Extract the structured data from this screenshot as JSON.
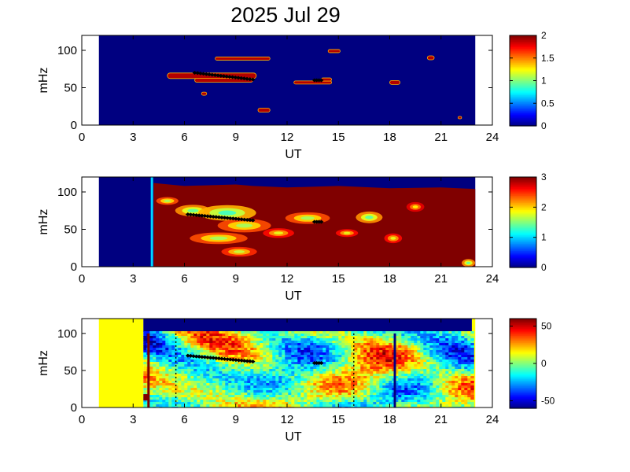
{
  "figure": {
    "title": "2025 Jul 29"
  },
  "chart_data": [
    {
      "type": "heatmap",
      "title": "",
      "xlabel": "UT",
      "ylabel": "mHz",
      "xlim": [
        0,
        24
      ],
      "ylim": [
        0,
        120
      ],
      "xticks": [
        0,
        3,
        6,
        9,
        12,
        15,
        18,
        21,
        24
      ],
      "yticks": [
        0,
        50,
        100
      ],
      "data_extent_ut": [
        1,
        23
      ],
      "colorbar": {
        "min": 0,
        "max": 2,
        "ticks": [
          0,
          0.5,
          1,
          1.5,
          2
        ],
        "tick_labels": [
          "0",
          "0.5",
          "1",
          "1.5",
          "2"
        ],
        "colormap": "jet"
      },
      "background_color": "#0a14a0",
      "features": [
        {
          "ut_start": 7.8,
          "ut_end": 11.0,
          "mhz": 89,
          "thickness": 4,
          "level": 1.9
        },
        {
          "ut_start": 5.0,
          "ut_end": 10.2,
          "mhz": 66,
          "thickness": 7,
          "level": 1.9
        },
        {
          "ut_start": 6.6,
          "ut_end": 10.0,
          "mhz": 60,
          "thickness": 5,
          "level": 1.9
        },
        {
          "ut_start": 12.4,
          "ut_end": 14.6,
          "mhz": 57,
          "thickness": 4,
          "level": 1.9
        },
        {
          "ut_start": 14.0,
          "ut_end": 14.6,
          "mhz": 61,
          "thickness": 4,
          "level": 1.9
        },
        {
          "ut_start": 7.0,
          "ut_end": 7.3,
          "mhz": 42,
          "thickness": 4,
          "level": 1.9
        },
        {
          "ut_start": 10.3,
          "ut_end": 11.0,
          "mhz": 20,
          "thickness": 5,
          "level": 1.9
        },
        {
          "ut_start": 14.4,
          "ut_end": 15.1,
          "mhz": 99,
          "thickness": 4,
          "level": 1.9
        },
        {
          "ut_start": 18.0,
          "ut_end": 18.6,
          "mhz": 57,
          "thickness": 5,
          "level": 1.9
        },
        {
          "ut_start": 20.2,
          "ut_end": 20.6,
          "mhz": 90,
          "thickness": 5,
          "level": 1.9
        },
        {
          "ut_start": 22.0,
          "ut_end": 22.2,
          "mhz": 10,
          "thickness": 3,
          "level": 1.9
        }
      ],
      "markers": [
        {
          "ut_start": 6.6,
          "ut_end": 10.0,
          "mhz_start": 70,
          "mhz_end": 61
        },
        {
          "ut_start": 13.6,
          "ut_end": 14.0,
          "mhz_start": 60,
          "mhz_end": 60
        }
      ]
    },
    {
      "type": "heatmap",
      "title": "",
      "xlabel": "UT",
      "ylabel": "mHz",
      "xlim": [
        0,
        24
      ],
      "ylim": [
        0,
        120
      ],
      "xticks": [
        0,
        3,
        6,
        9,
        12,
        15,
        18,
        21,
        24
      ],
      "yticks": [
        0,
        50,
        100
      ],
      "data_extent_ut": [
        1,
        23
      ],
      "colorbar": {
        "min": 0,
        "max": 3,
        "ticks": [
          0,
          1,
          2,
          3
        ],
        "tick_labels": [
          "0",
          "1",
          "2",
          "3"
        ],
        "colormap": "jet"
      },
      "background_color": "#0a14a0",
      "saturated_region": {
        "ut_start": 4.2,
        "ut_end": 23.0,
        "upper_mhz": [
          [
            4.2,
            112
          ],
          [
            6,
            108
          ],
          [
            9,
            110
          ],
          [
            10,
            108
          ],
          [
            12,
            106
          ],
          [
            15,
            108
          ],
          [
            18,
            105
          ],
          [
            21,
            106
          ],
          [
            23,
            104
          ]
        ],
        "level": 3.0
      },
      "vertical_line": {
        "ut": 4.1,
        "level": 1.0
      },
      "features": [
        {
          "ut": 5.0,
          "mhz": 88,
          "w": 1.0,
          "h": 8,
          "level": 2.0
        },
        {
          "ut": 6.5,
          "mhz": 75,
          "w": 1.6,
          "h": 12,
          "level": 1.8
        },
        {
          "ut": 8.5,
          "mhz": 72,
          "w": 2.6,
          "h": 16,
          "level": 1.7
        },
        {
          "ut": 9.5,
          "mhz": 55,
          "w": 2.4,
          "h": 14,
          "level": 2.0
        },
        {
          "ut": 8.0,
          "mhz": 38,
          "w": 2.6,
          "h": 12,
          "level": 2.0
        },
        {
          "ut": 9.2,
          "mhz": 20,
          "w": 1.6,
          "h": 10,
          "level": 2.1
        },
        {
          "ut": 11.5,
          "mhz": 45,
          "w": 1.4,
          "h": 10,
          "level": 2.2
        },
        {
          "ut": 13.2,
          "mhz": 65,
          "w": 2.0,
          "h": 12,
          "level": 2.0
        },
        {
          "ut": 16.8,
          "mhz": 66,
          "w": 1.2,
          "h": 12,
          "level": 1.8
        },
        {
          "ut": 15.5,
          "mhz": 45,
          "w": 1.0,
          "h": 8,
          "level": 2.2
        },
        {
          "ut": 18.2,
          "mhz": 38,
          "w": 0.8,
          "h": 10,
          "level": 2.2
        },
        {
          "ut": 19.5,
          "mhz": 80,
          "w": 0.8,
          "h": 10,
          "level": 2.3
        },
        {
          "ut": 22.6,
          "mhz": 5,
          "w": 0.6,
          "h": 8,
          "level": 1.8
        }
      ],
      "markers": [
        {
          "ut_start": 6.2,
          "ut_end": 10.0,
          "mhz_start": 70,
          "mhz_end": 62
        },
        {
          "ut_start": 13.6,
          "ut_end": 14.0,
          "mhz_start": 60,
          "mhz_end": 60
        }
      ]
    },
    {
      "type": "heatmap",
      "title": "",
      "xlabel": "UT",
      "ylabel": "mHz",
      "xlim": [
        0,
        24
      ],
      "ylim": [
        0,
        120
      ],
      "xticks": [
        0,
        3,
        6,
        9,
        12,
        15,
        18,
        21,
        24
      ],
      "yticks": [
        0,
        50,
        100
      ],
      "data_extent_ut": [
        1,
        23
      ],
      "colorbar": {
        "min": -60,
        "max": 60,
        "ticks": [
          -50,
          0,
          50
        ],
        "tick_labels": [
          "-50",
          "0",
          "50"
        ],
        "colormap": "jet"
      },
      "blank_region": {
        "ut_start": 1.0,
        "ut_end": 3.6,
        "level": 15
      },
      "right_blank_region": {
        "ut_start": 22.8,
        "ut_end": 23.0,
        "level": 15
      },
      "noise_region": {
        "ut_start": 3.6,
        "ut_end": 22.8,
        "top_mhz": 103
      },
      "top_band_level": -60,
      "vertical_lines": [
        {
          "ut": 3.9,
          "level": 60,
          "style": "solid"
        },
        {
          "ut": 18.3,
          "level": -60,
          "style": "solid"
        },
        {
          "ut": 5.5,
          "level": -60,
          "style": "dotted"
        },
        {
          "ut": 15.9,
          "level": -60,
          "style": "dotted"
        }
      ],
      "markers": [
        {
          "ut_start": 6.2,
          "ut_end": 10.0,
          "mhz_start": 70,
          "mhz_end": 62
        },
        {
          "ut_start": 13.6,
          "ut_end": 14.0,
          "mhz_start": 60,
          "mhz_end": 60
        }
      ]
    }
  ]
}
